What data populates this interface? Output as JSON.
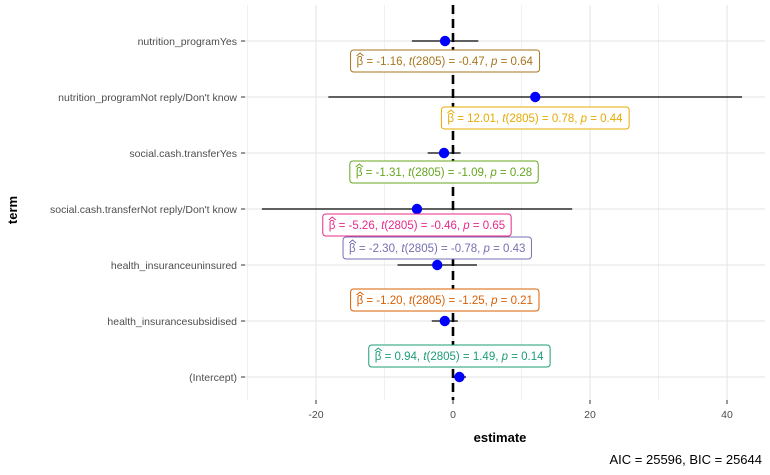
{
  "chart_data": {
    "type": "coefficient-plot",
    "xlabel": "estimate",
    "ylabel": "term",
    "xlim": [
      -30,
      45
    ],
    "x_ticks": [
      -20,
      0,
      20,
      40
    ],
    "x_tick_labels": [
      "-20",
      "0",
      "20",
      "40"
    ],
    "reference_line": 0,
    "caption": "AIC = 25596, BIC = 25644",
    "terms": [
      {
        "term": "(Intercept)",
        "estimate": 0.94,
        "conf_low": 0.0,
        "conf_high": 1.9,
        "color": "#1B9E77",
        "label": {
          "beta": "0.94",
          "t": "1.49",
          "p": "0.14"
        }
      },
      {
        "term": "health_insurancesubsidised",
        "estimate": -1.2,
        "conf_low": -3.1,
        "conf_high": 0.7,
        "color": "#D95F02",
        "label": {
          "beta": "-1.20",
          "t": "-1.25",
          "p": "0.21"
        }
      },
      {
        "term": "health_insuranceuninsured",
        "estimate": -2.3,
        "conf_low": -8.1,
        "conf_high": 3.5,
        "color": "#7570B3",
        "label": {
          "beta": "-2.30",
          "t": "-0.78",
          "p": "0.43"
        }
      },
      {
        "term": "social.cash.transferNot reply/Don't know",
        "estimate": -5.26,
        "conf_low": -27.9,
        "conf_high": 17.4,
        "color": "#E7298A",
        "label": {
          "beta": "-5.26",
          "t": "-0.46",
          "p": "0.65"
        }
      },
      {
        "term": "social.cash.transferYes",
        "estimate": -1.31,
        "conf_low": -3.7,
        "conf_high": 1.1,
        "color": "#66A61E",
        "label": {
          "beta": "-1.31",
          "t": "-1.09",
          "p": "0.28"
        }
      },
      {
        "term": "nutrition_programNot reply/Don't know",
        "estimate": 12.01,
        "conf_low": -18.2,
        "conf_high": 42.2,
        "color": "#E6AB02",
        "label": {
          "beta": "12.01",
          "t": "0.78",
          "p": "0.44"
        }
      },
      {
        "term": "nutrition_programYes",
        "estimate": -1.16,
        "conf_low": -6.0,
        "conf_high": 3.7,
        "color": "#A6761D",
        "label": {
          "beta": "-1.16",
          "t": "-0.47",
          "p": "0.64"
        }
      }
    ],
    "label_template": {
      "beta_symbol": "β",
      "equals": " = ",
      "t_prefix": "t",
      "df": "2805",
      "p_prefix": "p",
      "sep": ", "
    }
  }
}
